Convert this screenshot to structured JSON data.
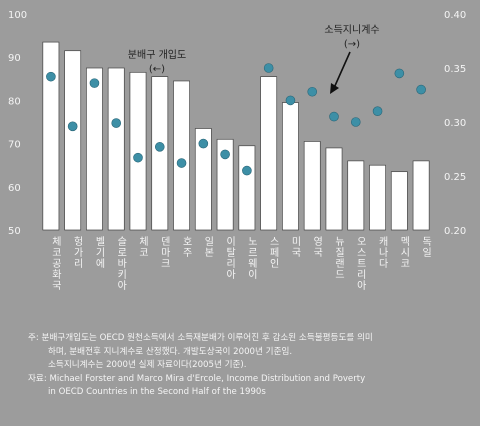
{
  "chart_data": {
    "type": "bar",
    "categories": [
      "체코공화국",
      "헝가리",
      "벨기에",
      "슬로바키아",
      "체코",
      "덴마크",
      "호주",
      "일본",
      "이탈리아",
      "노르웨이",
      "스페인",
      "미국",
      "영국",
      "뉴질랜드",
      "오스트리아",
      "캐나다",
      "멕시코",
      "독일"
    ],
    "series": [
      {
        "values": [
          93.5,
          91.5,
          87.5,
          87.5,
          86.5,
          85.5,
          84.5,
          73.5,
          71.0,
          69.5,
          85.5,
          79.5,
          70.5,
          69.0,
          66.0,
          65.0,
          63.5,
          66.0
        ]
      },
      {
        "values": [
          0.342,
          0.296,
          0.336,
          0.299,
          0.267,
          0.277,
          0.262,
          0.28,
          0.27,
          0.255,
          0.35,
          0.32,
          0.328,
          0.305,
          0.3,
          0.31,
          0.345,
          0.33
        ]
      }
    ],
    "y_left_ticks": [
      "100",
      "90",
      "80",
      "70",
      "60",
      "50"
    ],
    "y_right_ticks": [
      "0.40",
      "0.35",
      "0.30",
      "0.25",
      "0.20"
    ],
    "ylim_left": [
      50,
      100
    ],
    "ylim_right": [
      0.2,
      0.4
    ],
    "annotations": [
      {
        "text": "분배구 개입도",
        "sub": "(←)"
      },
      {
        "text": "소득지니계수",
        "sub": "(→)"
      }
    ],
    "colors": {
      "bar": "#ffffff",
      "bar_stroke": "#444444",
      "dot": "#3d8fa6",
      "text": "#f4f4f4"
    }
  },
  "notes": {
    "line1": "주: 분배구개입도는 OECD 원천소득에서 소득재분배가 이루어진 후 감소된 소득불평등도를 의미",
    "line2": "하며, 분배전후 지니계수로 산정했다. 개발도상국이 2000년 기준임.",
    "line3": "소득지니계수는 2000년 실제 자료이다(2005년 기준).",
    "line4": "자료: Michael Forster and Marco Mira d'Ercole, Income Distribution and Poverty",
    "line5": "in OECD Countries in the Second Half of the 1990s"
  }
}
